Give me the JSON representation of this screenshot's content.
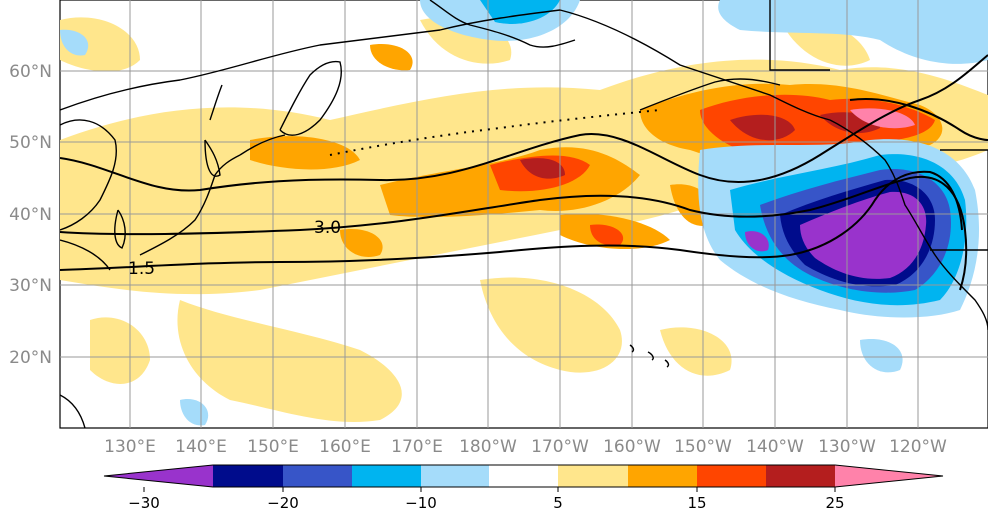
{
  "map": {
    "lat_labels": [
      "60°N",
      "50°N",
      "40°N",
      "30°N",
      "20°N"
    ],
    "lon_labels": [
      "130°E",
      "140°E",
      "150°E",
      "160°E",
      "170°E",
      "180°W",
      "170°W",
      "160°W",
      "150°W",
      "140°W",
      "130°W",
      "120°W"
    ],
    "contour_labels": [
      "3.0",
      "1.5"
    ]
  },
  "colorbar": {
    "ticks": [
      "−30",
      "−20",
      "−10",
      "5",
      "15",
      "25"
    ],
    "colors": [
      "#9933cc",
      "#000c8c",
      "#3755c8",
      "#00b4f0",
      "#a5dcfa",
      "#ffffff",
      "#ffe68c",
      "#ffa500",
      "#ff4500",
      "#b41e1e",
      "#ff82aa"
    ]
  }
}
